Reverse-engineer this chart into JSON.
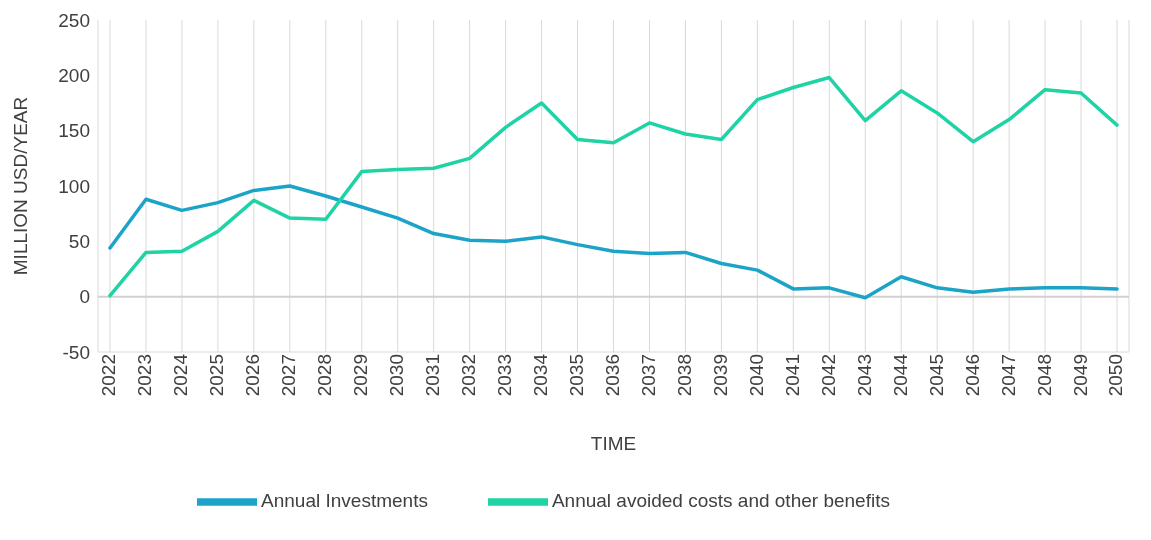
{
  "chart_data": {
    "type": "line",
    "xlabel": "TIME",
    "ylabel": "MILLION USD/YEAR",
    "categories": [
      "2022",
      "2023",
      "2024",
      "2025",
      "2026",
      "2027",
      "2028",
      "2029",
      "2030",
      "2031",
      "2032",
      "2033",
      "2034",
      "2035",
      "2036",
      "2037",
      "2038",
      "2039",
      "2040",
      "2041",
      "2042",
      "2043",
      "2044",
      "2045",
      "2046",
      "2047",
      "2048",
      "2049",
      "2050"
    ],
    "series": [
      {
        "name": "Annual Investments",
        "color": "#1ba3c8",
        "values": [
          44,
          88,
          78,
          85,
          96,
          100,
          91,
          81,
          71,
          57,
          51,
          50,
          54,
          47,
          41,
          39,
          40,
          30,
          24,
          7,
          8,
          -1,
          18,
          8,
          4,
          7,
          8,
          8,
          7
        ]
      },
      {
        "name": "Annual avoided costs and other benefits",
        "color": "#1fd3a5",
        "values": [
          1,
          40,
          41,
          59,
          87,
          71,
          70,
          113,
          115,
          116,
          125,
          153,
          175,
          142,
          139,
          157,
          147,
          142,
          178,
          189,
          198,
          159,
          186,
          166,
          140,
          160,
          187,
          184,
          155
        ]
      }
    ],
    "ylim": [
      -50,
      250
    ],
    "yticks": [
      -50,
      0,
      50,
      100,
      150,
      200,
      250
    ],
    "grid": "x",
    "legend": "bottom",
    "marker": "none",
    "line_style": "solid",
    "ref_lines": [
      {
        "axis": "y",
        "value": 0,
        "color": "#d0d0d0"
      }
    ]
  }
}
